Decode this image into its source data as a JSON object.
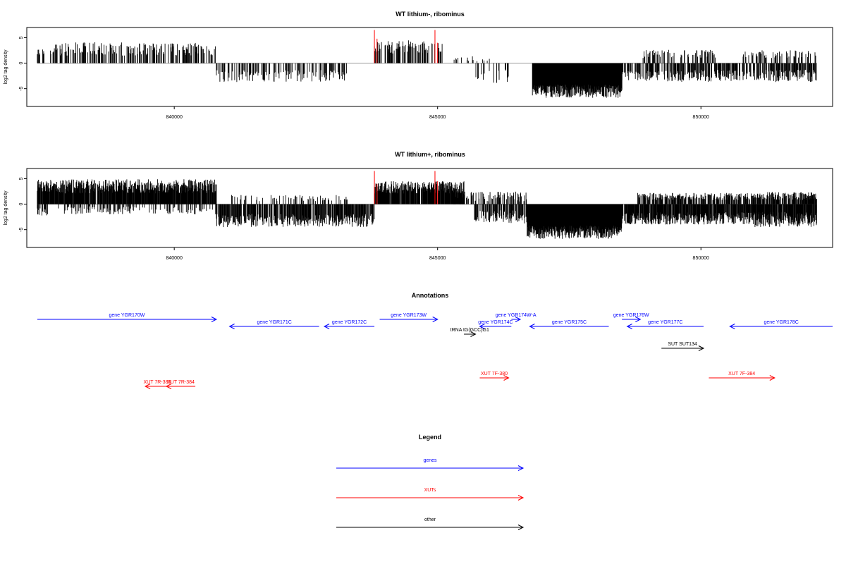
{
  "colors": {
    "genes": "#0000ff",
    "xuts": "#ff0000",
    "other": "#000000",
    "highlight": "#ff0000",
    "axis": "#000000",
    "baseline": "#999999"
  },
  "chart_data": [
    {
      "type": "bar",
      "title": "WT lithium-, ribominus",
      "ylabel": "log2 tag density",
      "xlabel": "",
      "xlim": [
        837200,
        852500
      ],
      "ylim": [
        -8.5,
        7
      ],
      "xticks": [
        840000,
        845000,
        850000
      ],
      "xtick_labels": [
        "840000",
        "845000",
        "850000"
      ],
      "yticks": [
        5,
        0,
        -5
      ],
      "ytick_labels": [
        "5",
        "0",
        "-5"
      ],
      "grid": false,
      "segments": [
        {
          "from": 837400,
          "to": 837550,
          "strand": "+",
          "level": 2.2,
          "noise": 1.0,
          "density": 0.3,
          "seed": 11
        },
        {
          "from": 837650,
          "to": 840800,
          "strand": "+",
          "level": 2.8,
          "noise": 1.3,
          "density": 0.35,
          "seed": 12
        },
        {
          "from": 840800,
          "to": 843300,
          "strand": "-",
          "level": 2.5,
          "noise": 1.2,
          "density": 0.3,
          "seed": 13
        },
        {
          "from": 843800,
          "to": 845100,
          "strand": "+",
          "level": 3.2,
          "noise": 1.3,
          "density": 0.45,
          "seed": 14
        },
        {
          "from": 845300,
          "to": 846000,
          "strand": "+",
          "level": 1.0,
          "noise": 0.6,
          "density": 0.15,
          "seed": 15
        },
        {
          "from": 845700,
          "to": 846400,
          "strand": "-",
          "level": 2.5,
          "noise": 1.5,
          "density": 0.15,
          "seed": 16
        },
        {
          "from": 846800,
          "to": 848500,
          "strand": "-",
          "level": 5.5,
          "noise": 1.3,
          "density": 1.0,
          "seed": 17
        },
        {
          "from": 848500,
          "to": 849200,
          "strand": "-",
          "level": 2.5,
          "noise": 1.0,
          "density": 0.55,
          "seed": 18
        },
        {
          "from": 848900,
          "to": 850300,
          "strand": "+",
          "level": 1.8,
          "noise": 0.8,
          "density": 0.25,
          "seed": 19
        },
        {
          "from": 849200,
          "to": 851000,
          "strand": "-",
          "level": 2.5,
          "noise": 1.2,
          "density": 0.55,
          "seed": 20
        },
        {
          "from": 850800,
          "to": 852200,
          "strand": "+",
          "level": 1.8,
          "noise": 0.8,
          "density": 0.25,
          "seed": 21
        },
        {
          "from": 851000,
          "to": 852200,
          "strand": "-",
          "level": 2.5,
          "noise": 1.2,
          "density": 0.55,
          "seed": 22
        }
      ],
      "highlights": [
        {
          "x": 843800,
          "value": 6.5
        },
        {
          "x": 843850,
          "value": 4.8
        },
        {
          "x": 844950,
          "value": 6.5
        },
        {
          "x": 845000,
          "value": 4.0
        }
      ]
    },
    {
      "type": "bar",
      "title": "WT lithium+, ribominus",
      "ylabel": "log2 tag density",
      "xlabel": "",
      "xlim": [
        837200,
        852500
      ],
      "ylim": [
        -8.5,
        7
      ],
      "xticks": [
        840000,
        845000,
        850000
      ],
      "xtick_labels": [
        "840000",
        "845000",
        "850000"
      ],
      "yticks": [
        5,
        0,
        -5
      ],
      "ytick_labels": [
        "5",
        "0",
        "-5"
      ],
      "grid": false,
      "segments": [
        {
          "from": 837400,
          "to": 837600,
          "strand": "-",
          "level": 1.5,
          "noise": 0.8,
          "density": 0.4,
          "seed": 31
        },
        {
          "from": 837400,
          "to": 840800,
          "strand": "+",
          "level": 3.5,
          "noise": 1.4,
          "density": 0.9,
          "seed": 32
        },
        {
          "from": 837800,
          "to": 840800,
          "strand": "-",
          "level": 1.2,
          "noise": 0.8,
          "density": 0.25,
          "seed": 33
        },
        {
          "from": 840800,
          "to": 843800,
          "strand": "-",
          "level": 3.2,
          "noise": 1.3,
          "density": 0.65,
          "seed": 34
        },
        {
          "from": 841000,
          "to": 843300,
          "strand": "+",
          "level": 1.2,
          "noise": 0.6,
          "density": 0.2,
          "seed": 35
        },
        {
          "from": 843800,
          "to": 845500,
          "strand": "+",
          "level": 3.3,
          "noise": 1.2,
          "density": 0.85,
          "seed": 36
        },
        {
          "from": 845300,
          "to": 846700,
          "strand": "+",
          "level": 1.5,
          "noise": 1.0,
          "density": 0.35,
          "seed": 37
        },
        {
          "from": 845700,
          "to": 846700,
          "strand": "-",
          "level": 2.5,
          "noise": 1.3,
          "density": 0.55,
          "seed": 38
        },
        {
          "from": 846700,
          "to": 848500,
          "strand": "-",
          "level": 5.5,
          "noise": 1.3,
          "density": 1.0,
          "seed": 39
        },
        {
          "from": 848500,
          "to": 851000,
          "strand": "-",
          "level": 2.8,
          "noise": 1.2,
          "density": 0.85,
          "seed": 40
        },
        {
          "from": 848800,
          "to": 851000,
          "strand": "+",
          "level": 1.5,
          "noise": 0.7,
          "density": 0.55,
          "seed": 41
        },
        {
          "from": 851000,
          "to": 852200,
          "strand": "-",
          "level": 3.0,
          "noise": 1.5,
          "density": 0.9,
          "seed": 42
        },
        {
          "from": 851000,
          "to": 852200,
          "strand": "+",
          "level": 1.6,
          "noise": 0.8,
          "density": 0.7,
          "seed": 43
        }
      ],
      "highlights": [
        {
          "x": 843800,
          "value": 6.5
        },
        {
          "x": 843850,
          "value": 4.0
        },
        {
          "x": 844950,
          "value": 6.5
        },
        {
          "x": 845000,
          "value": 4.5
        }
      ]
    }
  ],
  "annotations": {
    "title": "Annotations",
    "features": [
      {
        "label": "gene YGR170W",
        "type": "gene",
        "strand": "+",
        "start": 837400,
        "end": 840800,
        "row": 0
      },
      {
        "label": "gene YGR171C",
        "type": "gene",
        "strand": "-",
        "start": 841050,
        "end": 842750,
        "row": 1
      },
      {
        "label": "gene YGR172C",
        "type": "gene",
        "strand": "-",
        "start": 842850,
        "end": 843800,
        "row": 1
      },
      {
        "label": "gene YGR173W",
        "type": "gene",
        "strand": "+",
        "start": 843900,
        "end": 845000,
        "row": 0
      },
      {
        "label": "tRNA tG(GCC)G1",
        "type": "other",
        "strand": "+",
        "start": 845500,
        "end": 845720,
        "row": 2
      },
      {
        "label": "gene YGR174C",
        "type": "gene",
        "strand": "-",
        "start": 845800,
        "end": 846400,
        "row": 1
      },
      {
        "label": "gene YGR174W-A",
        "type": "gene",
        "strand": "+",
        "start": 846400,
        "end": 846570,
        "row": 0
      },
      {
        "label": "gene YGR175C",
        "type": "gene",
        "strand": "-",
        "start": 846750,
        "end": 848250,
        "row": 1
      },
      {
        "label": "gene YGR176W",
        "type": "gene",
        "strand": "+",
        "start": 848500,
        "end": 848850,
        "row": 0
      },
      {
        "label": "gene YGR177C",
        "type": "gene",
        "strand": "-",
        "start": 848600,
        "end": 850050,
        "row": 1
      },
      {
        "label": "SUT SUT134",
        "type": "other",
        "strand": "+",
        "start": 849250,
        "end": 850050,
        "row": 3
      },
      {
        "label": "gene YGR178C",
        "type": "gene",
        "strand": "-",
        "start": 850550,
        "end": 852500,
        "row": 1
      },
      {
        "label": "XUT 7R-383",
        "type": "xut",
        "strand": "-",
        "start": 839450,
        "end": 839900,
        "row": 5
      },
      {
        "label": "XUT 7R-384",
        "type": "xut",
        "strand": "-",
        "start": 839850,
        "end": 840400,
        "row": 5
      },
      {
        "label": "XUT 7F-380",
        "type": "xut",
        "strand": "+",
        "start": 845800,
        "end": 846350,
        "row": 4
      },
      {
        "label": "XUT 7F-384",
        "type": "xut",
        "strand": "+",
        "start": 850150,
        "end": 851400,
        "row": 4
      }
    ]
  },
  "legend": {
    "title": "Legend",
    "items": [
      {
        "label": "genes",
        "type": "gene"
      },
      {
        "label": "XUTs",
        "type": "xut"
      },
      {
        "label": "other",
        "type": "other"
      }
    ]
  }
}
